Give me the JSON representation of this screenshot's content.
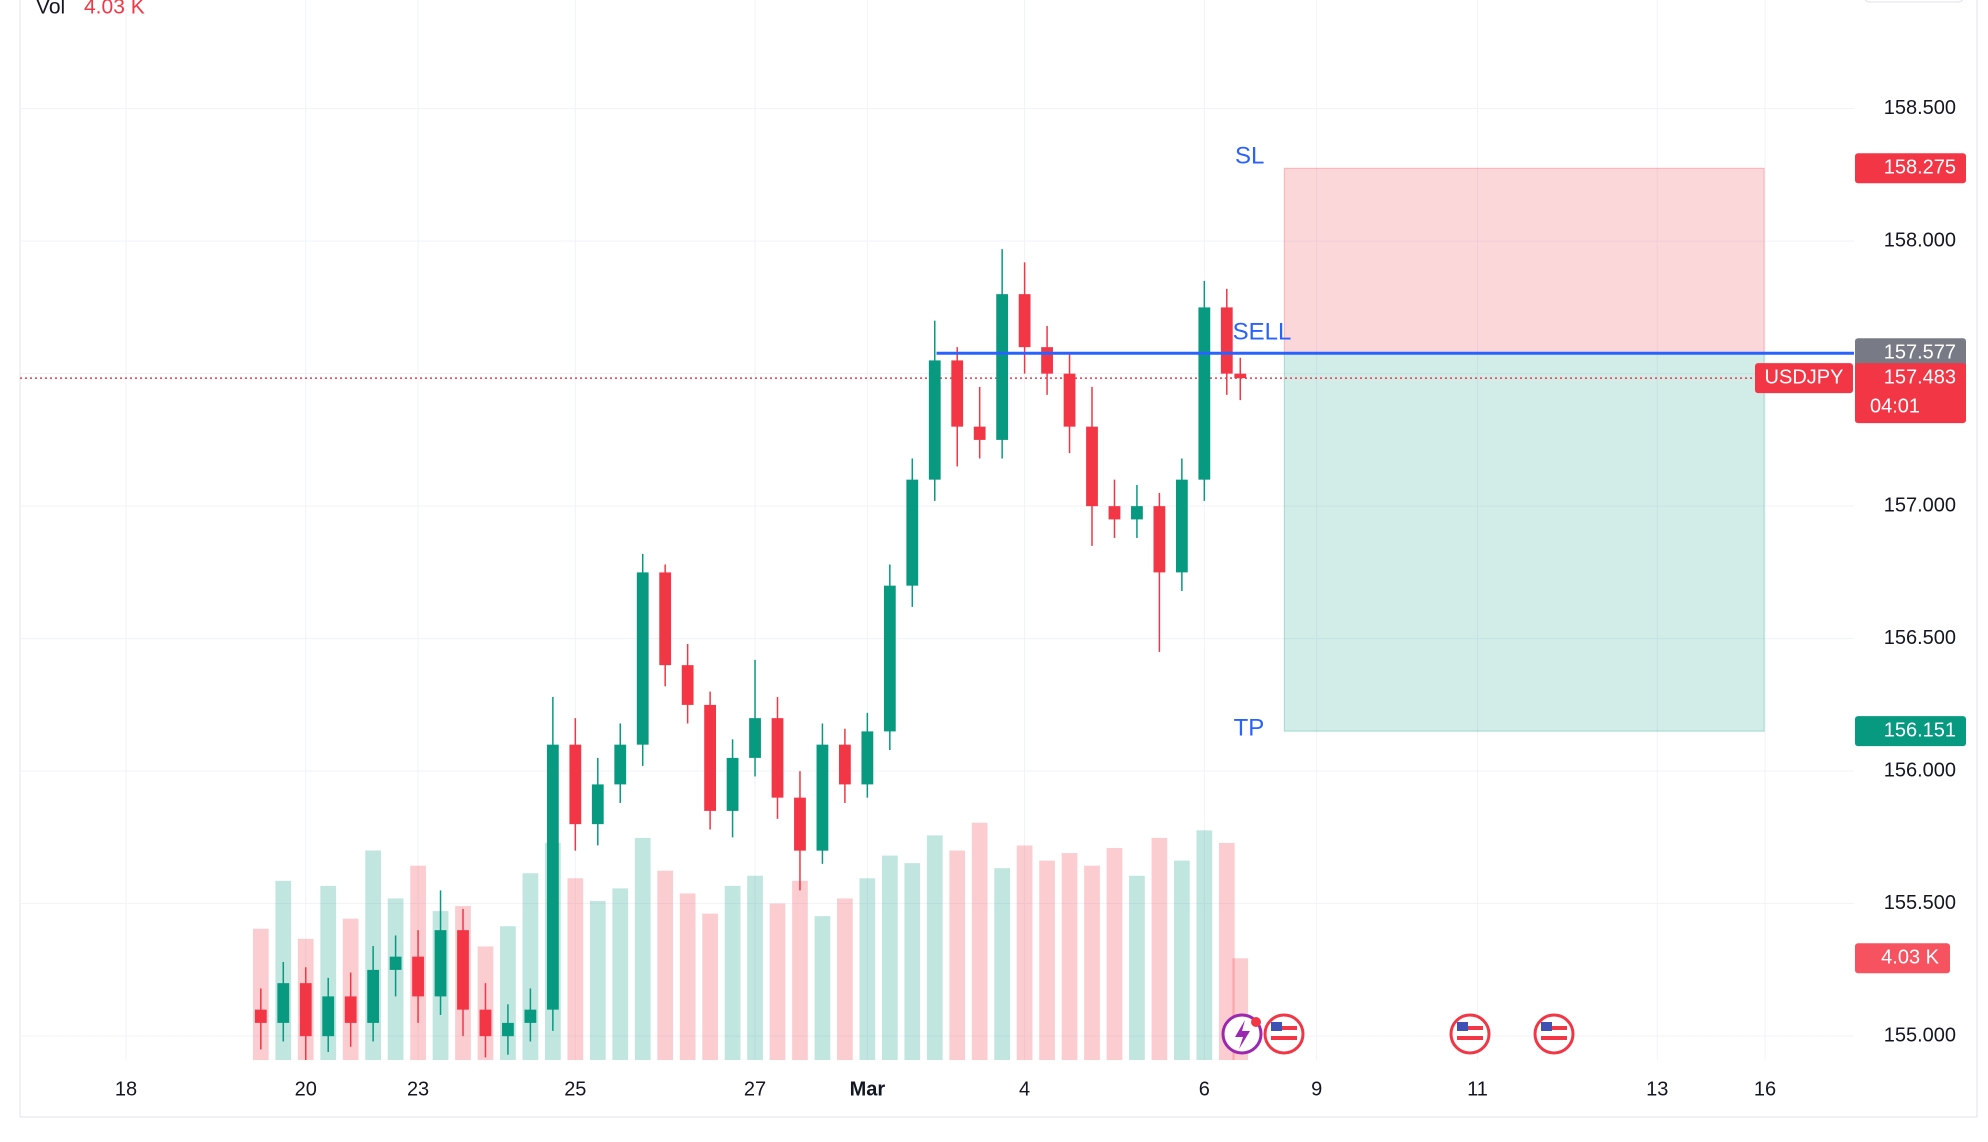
{
  "chart_data": {
    "type": "candlestick",
    "symbol": "USDJPY",
    "volume_title": "Vol",
    "volume_label": "4.03 K",
    "countdown": "04:01",
    "up_color": "#089981",
    "down_color": "#f23645",
    "grid": true,
    "xlim": [
      -1.18,
      19.23
    ],
    "xticks": [
      {
        "value": 0,
        "label": "18"
      },
      {
        "value": 2,
        "label": "20"
      },
      {
        "value": 3.25,
        "label": "23"
      },
      {
        "value": 5,
        "label": "25"
      },
      {
        "value": 7,
        "label": "27"
      },
      {
        "value": 8.25,
        "label": "Mar"
      },
      {
        "value": 10,
        "label": "4"
      },
      {
        "value": 12,
        "label": "6"
      },
      {
        "value": 13.25,
        "label": "9"
      },
      {
        "value": 15.04,
        "label": "11"
      },
      {
        "value": 17.04,
        "label": "13"
      },
      {
        "value": 18.24,
        "label": "16"
      }
    ],
    "ylim": [
      154.91,
      158.91
    ],
    "yticks": [
      {
        "value": 155,
        "label": "155.000"
      },
      {
        "value": 155.5,
        "label": "155.500"
      },
      {
        "value": 156,
        "label": "156.000"
      },
      {
        "value": 156.5,
        "label": "156.500"
      },
      {
        "value": 157,
        "label": "157.000"
      },
      {
        "value": 157.5,
        "label": "157.500"
      },
      {
        "value": 158,
        "label": "158.000"
      },
      {
        "value": 158.5,
        "label": "158.500"
      }
    ],
    "x": [
      1.5,
      1.75,
      2,
      2.25,
      2.5,
      2.75,
      3,
      3.25,
      3.5,
      3.75,
      4,
      4.25,
      4.5,
      4.75,
      5,
      5.25,
      5.5,
      5.75,
      6,
      6.25,
      6.5,
      6.75,
      7,
      7.25,
      7.5,
      7.75,
      8,
      8.25,
      8.5,
      8.75,
      9,
      9.25,
      9.5,
      9.75,
      10,
      10.25,
      10.5,
      10.75,
      11,
      11.25,
      11.5,
      11.75,
      12,
      12.25,
      12.4
    ],
    "open": [
      155.1,
      155.05,
      155.2,
      155.0,
      155.15,
      155.05,
      155.25,
      155.3,
      155.15,
      155.4,
      155.1,
      155.0,
      155.05,
      155.1,
      156.1,
      155.8,
      155.95,
      156.1,
      156.75,
      156.4,
      156.25,
      155.85,
      156.05,
      156.2,
      155.9,
      155.7,
      156.1,
      155.95,
      156.15,
      156.7,
      157.1,
      157.55,
      157.3,
      157.25,
      157.8,
      157.6,
      157.5,
      157.3,
      157.0,
      156.95,
      157.0,
      156.75,
      157.1,
      157.75,
      157.5
    ],
    "high": [
      155.18,
      155.28,
      155.26,
      155.22,
      155.24,
      155.34,
      155.38,
      155.4,
      155.55,
      155.48,
      155.2,
      155.12,
      155.18,
      156.28,
      156.2,
      156.05,
      156.18,
      156.82,
      156.78,
      156.48,
      156.3,
      156.12,
      156.42,
      156.28,
      156.0,
      156.18,
      156.16,
      156.22,
      156.78,
      157.18,
      157.7,
      157.6,
      157.45,
      157.97,
      157.92,
      157.68,
      157.58,
      157.45,
      157.1,
      157.08,
      157.05,
      157.18,
      157.85,
      157.82,
      157.56
    ],
    "low": [
      154.95,
      154.98,
      154.9,
      154.94,
      154.96,
      154.98,
      155.15,
      155.05,
      155.08,
      155.0,
      154.92,
      154.93,
      154.98,
      155.02,
      155.7,
      155.72,
      155.88,
      156.02,
      156.32,
      156.18,
      155.78,
      155.75,
      155.98,
      155.82,
      155.55,
      155.65,
      155.88,
      155.9,
      156.08,
      156.62,
      157.02,
      157.15,
      157.18,
      157.18,
      157.5,
      157.42,
      157.2,
      156.85,
      156.88,
      156.88,
      156.45,
      156.68,
      157.02,
      157.42,
      157.4
    ],
    "close": [
      155.05,
      155.2,
      155.0,
      155.15,
      155.05,
      155.25,
      155.3,
      155.15,
      155.4,
      155.1,
      155.0,
      155.05,
      155.1,
      156.1,
      155.8,
      155.95,
      156.1,
      156.75,
      156.4,
      156.25,
      155.85,
      156.05,
      156.2,
      155.9,
      155.7,
      156.1,
      155.95,
      156.15,
      156.7,
      157.1,
      157.55,
      157.3,
      157.25,
      157.8,
      157.6,
      157.5,
      157.3,
      157.0,
      156.95,
      157.0,
      156.75,
      157.1,
      157.75,
      157.5,
      157.483
    ],
    "volume": [
      5200,
      7100,
      4800,
      6900,
      5600,
      8300,
      6400,
      7700,
      5900,
      6100,
      4500,
      5300,
      7400,
      8600,
      7200,
      6300,
      6800,
      8800,
      7500,
      6600,
      5800,
      6900,
      7300,
      6200,
      7100,
      5700,
      6400,
      7200,
      8100,
      7800,
      8900,
      8300,
      9400,
      7600,
      8500,
      7900,
      8200,
      7700,
      8400,
      7300,
      8800,
      7900,
      9100,
      8600,
      4030
    ],
    "volume_value_label": "4.03 K",
    "volume_ylim": [
      0,
      42000
    ],
    "current_price": 157.483,
    "position": {
      "entry": 157.577,
      "stop": 158.275,
      "target": 156.151,
      "entry_label": "SELL",
      "stop_label": "SL",
      "target_label": "TP",
      "order_x": 9.02,
      "x": [
        12.89,
        18.23
      ]
    }
  }
}
